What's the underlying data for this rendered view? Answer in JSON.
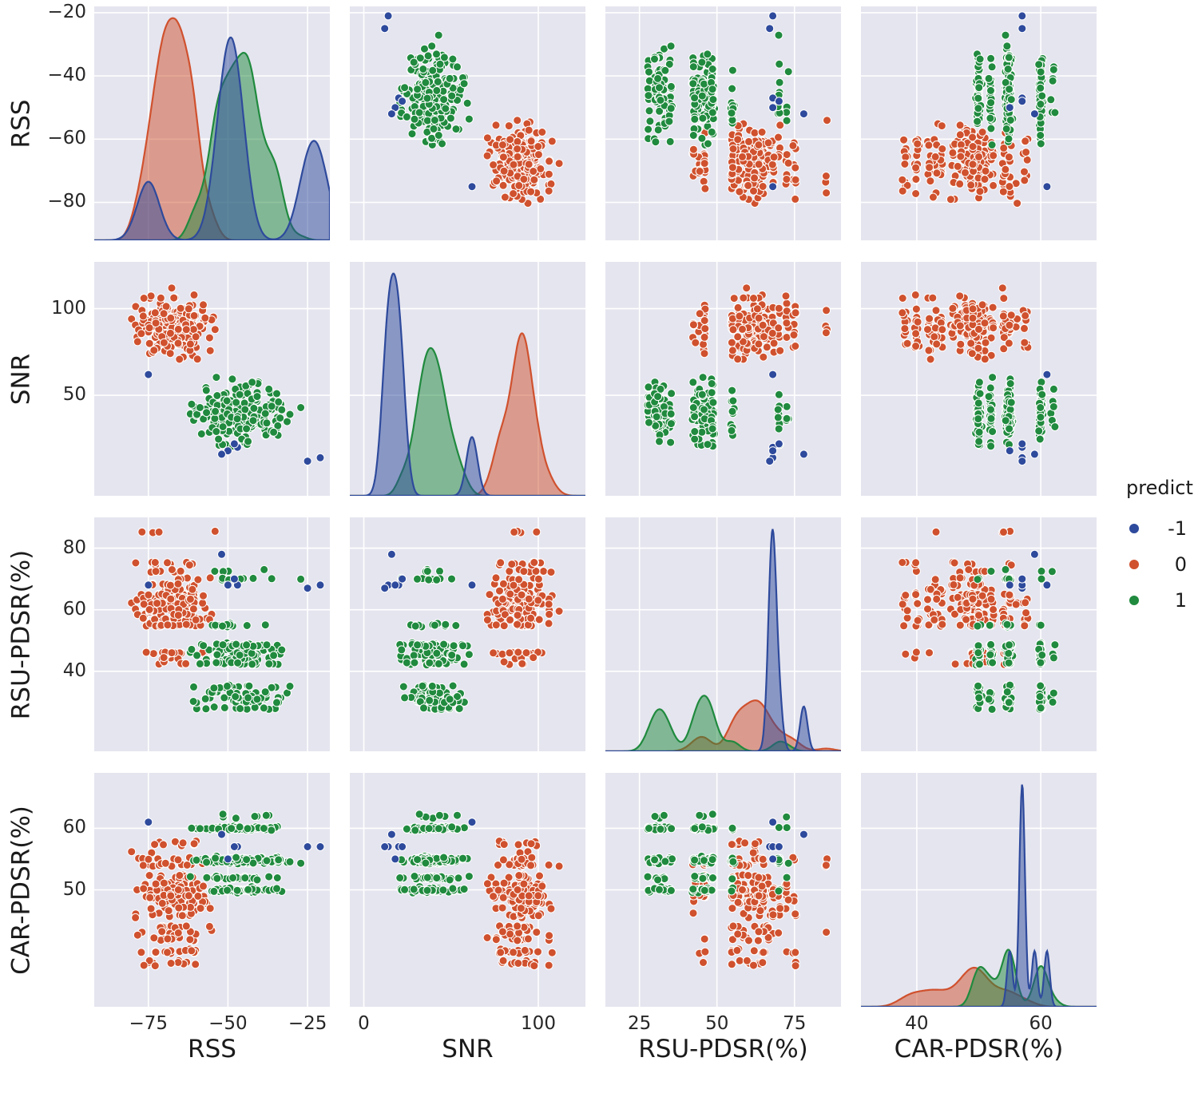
{
  "chart_data": {
    "type": "scatter",
    "subtype": "pairplot-matrix",
    "diagonal": "kde",
    "grid": "on",
    "variables": [
      "RSS",
      "SNR",
      "RSU-PDSR(%)",
      "CAR-PDSR(%)"
    ],
    "legend": {
      "title": "predict",
      "position": "right",
      "classes": [
        {
          "label": "-1",
          "color": "#2e4a9c"
        },
        {
          "label": "0",
          "color": "#d0512e"
        },
        {
          "label": "1",
          "color": "#208a3e"
        }
      ]
    },
    "style": {
      "plot_bg": "#e5e5ef",
      "grid": "#ffffff",
      "marker_edge": "#ffffff",
      "text": "#262626"
    },
    "axes": {
      "RSS": {
        "domain": [
          -92,
          -18
        ],
        "x_ticks": {
          "values": [
            -75,
            -50,
            -25
          ],
          "labels": [
            "−75",
            "−50",
            "−25"
          ]
        },
        "y_ticks": {
          "values": [
            -80,
            -60,
            -40,
            -20
          ],
          "labels": [
            "−80",
            "−60",
            "−40",
            "−20"
          ]
        }
      },
      "SNR": {
        "domain": [
          -8,
          127
        ],
        "x_ticks": {
          "values": [
            0,
            100
          ],
          "labels": [
            "0",
            "100"
          ]
        },
        "y_ticks": {
          "values": [
            50,
            100
          ],
          "labels": [
            "50",
            "100"
          ]
        }
      },
      "RSU-PDSR(%)": {
        "domain": [
          14,
          90
        ],
        "x_ticks": {
          "values": [
            25,
            50,
            75
          ],
          "labels": [
            "25",
            "50",
            "75"
          ]
        },
        "y_ticks": {
          "values": [
            40,
            60,
            80
          ],
          "labels": [
            "40",
            "60",
            "80"
          ]
        }
      },
      "CAR-PDSR(%)": {
        "domain": [
          31,
          69
        ],
        "x_ticks": {
          "values": [
            40,
            60
          ],
          "labels": [
            "40",
            "60"
          ]
        },
        "y_ticks": {
          "values": [
            50,
            60
          ],
          "labels": [
            "50",
            "60"
          ]
        }
      }
    },
    "classes": [
      {
        "label": "-1",
        "color": "#2e4a9c",
        "n": 7,
        "values": {
          "RSS": [
            -21,
            -25,
            -47,
            -48,
            -50,
            -52,
            -75
          ],
          "SNR": [
            14,
            12,
            20,
            22,
            18,
            16,
            62
          ],
          "RSU-PDSR(%)": [
            68,
            67,
            68,
            70,
            68,
            78,
            68
          ],
          "CAR-PDSR(%)": [
            57,
            57,
            57,
            57,
            55,
            59,
            61
          ]
        },
        "kde_bw": {
          "RSS": 3.5,
          "SNR": 3.2,
          "RSU-PDSR(%)": 1.2,
          "CAR-PDSR(%)": 0.45
        }
      },
      {
        "label": "0",
        "color": "#d0512e",
        "n": 200,
        "dist": {
          "RSS": {
            "type": "normal",
            "mean": -67.5,
            "sd": 5.5,
            "min": -88,
            "max": -53
          },
          "SNR": {
            "type": "normal",
            "mean": 90,
            "sd": 8.5,
            "min": 68,
            "max": 113
          },
          "RSU-PDSR(%)": {
            "type": "discrete",
            "values": [
              42.5,
              44,
              46,
              55,
              57,
              58.5,
              60,
              62,
              63.5,
              65,
              66.5,
              68,
              70,
              72.5,
              75,
              85
            ],
            "weights": [
              4,
              5,
              6,
              10,
              8,
              9,
              10,
              10,
              8,
              8,
              7,
              7,
              6,
              5,
              5,
              4
            ],
            "jitter": 0.25
          },
          "CAR-PDSR(%)": {
            "type": "discrete",
            "values": [
              38,
              40,
              42,
              43,
              44,
              46,
              47,
              48,
              49,
              50,
              51,
              52,
              54,
              55,
              56,
              57.5
            ],
            "weights": [
              4,
              5,
              6,
              6,
              5,
              6,
              7,
              8,
              8,
              9,
              7,
              6,
              5,
              4,
              3,
              3
            ],
            "jitter": 0.2
          }
        },
        "kde_bw": {
          "RSS": 2.2,
          "SNR": 3.5,
          "RSU-PDSR(%)": 2.8,
          "CAR-PDSR(%)": 1.7
        }
      },
      {
        "label": "1",
        "color": "#208a3e",
        "n": 200,
        "dist": {
          "RSS": {
            "type": "normal",
            "mean": -47,
            "sd": 7,
            "min": -64,
            "max": -26
          },
          "SNR": {
            "type": "normal",
            "mean": 40,
            "sd": 8.5,
            "min": 17,
            "max": 62
          },
          "RSU-PDSR(%)": {
            "type": "discrete",
            "values": [
              28,
              30,
              31.5,
              33,
              35,
              42.5,
              44,
              45.5,
              47,
              48.5,
              55,
              70,
              72.5
            ],
            "weights": [
              6,
              8,
              8,
              8,
              6,
              9,
              10,
              10,
              9,
              7,
              6,
              4,
              3
            ],
            "jitter": 0.25
          },
          "CAR-PDSR(%)": {
            "type": "discrete",
            "values": [
              50,
              52,
              54.5,
              55,
              60,
              62
            ],
            "weights": [
              8,
              3,
              4,
              6,
              8,
              2
            ],
            "jitter": 0.15
          }
        },
        "kde_bw": {
          "RSS": 2.2,
          "SNR": 3.5,
          "RSU-PDSR(%)": 2.4,
          "CAR-PDSR(%)": 1.1
        }
      }
    ]
  }
}
